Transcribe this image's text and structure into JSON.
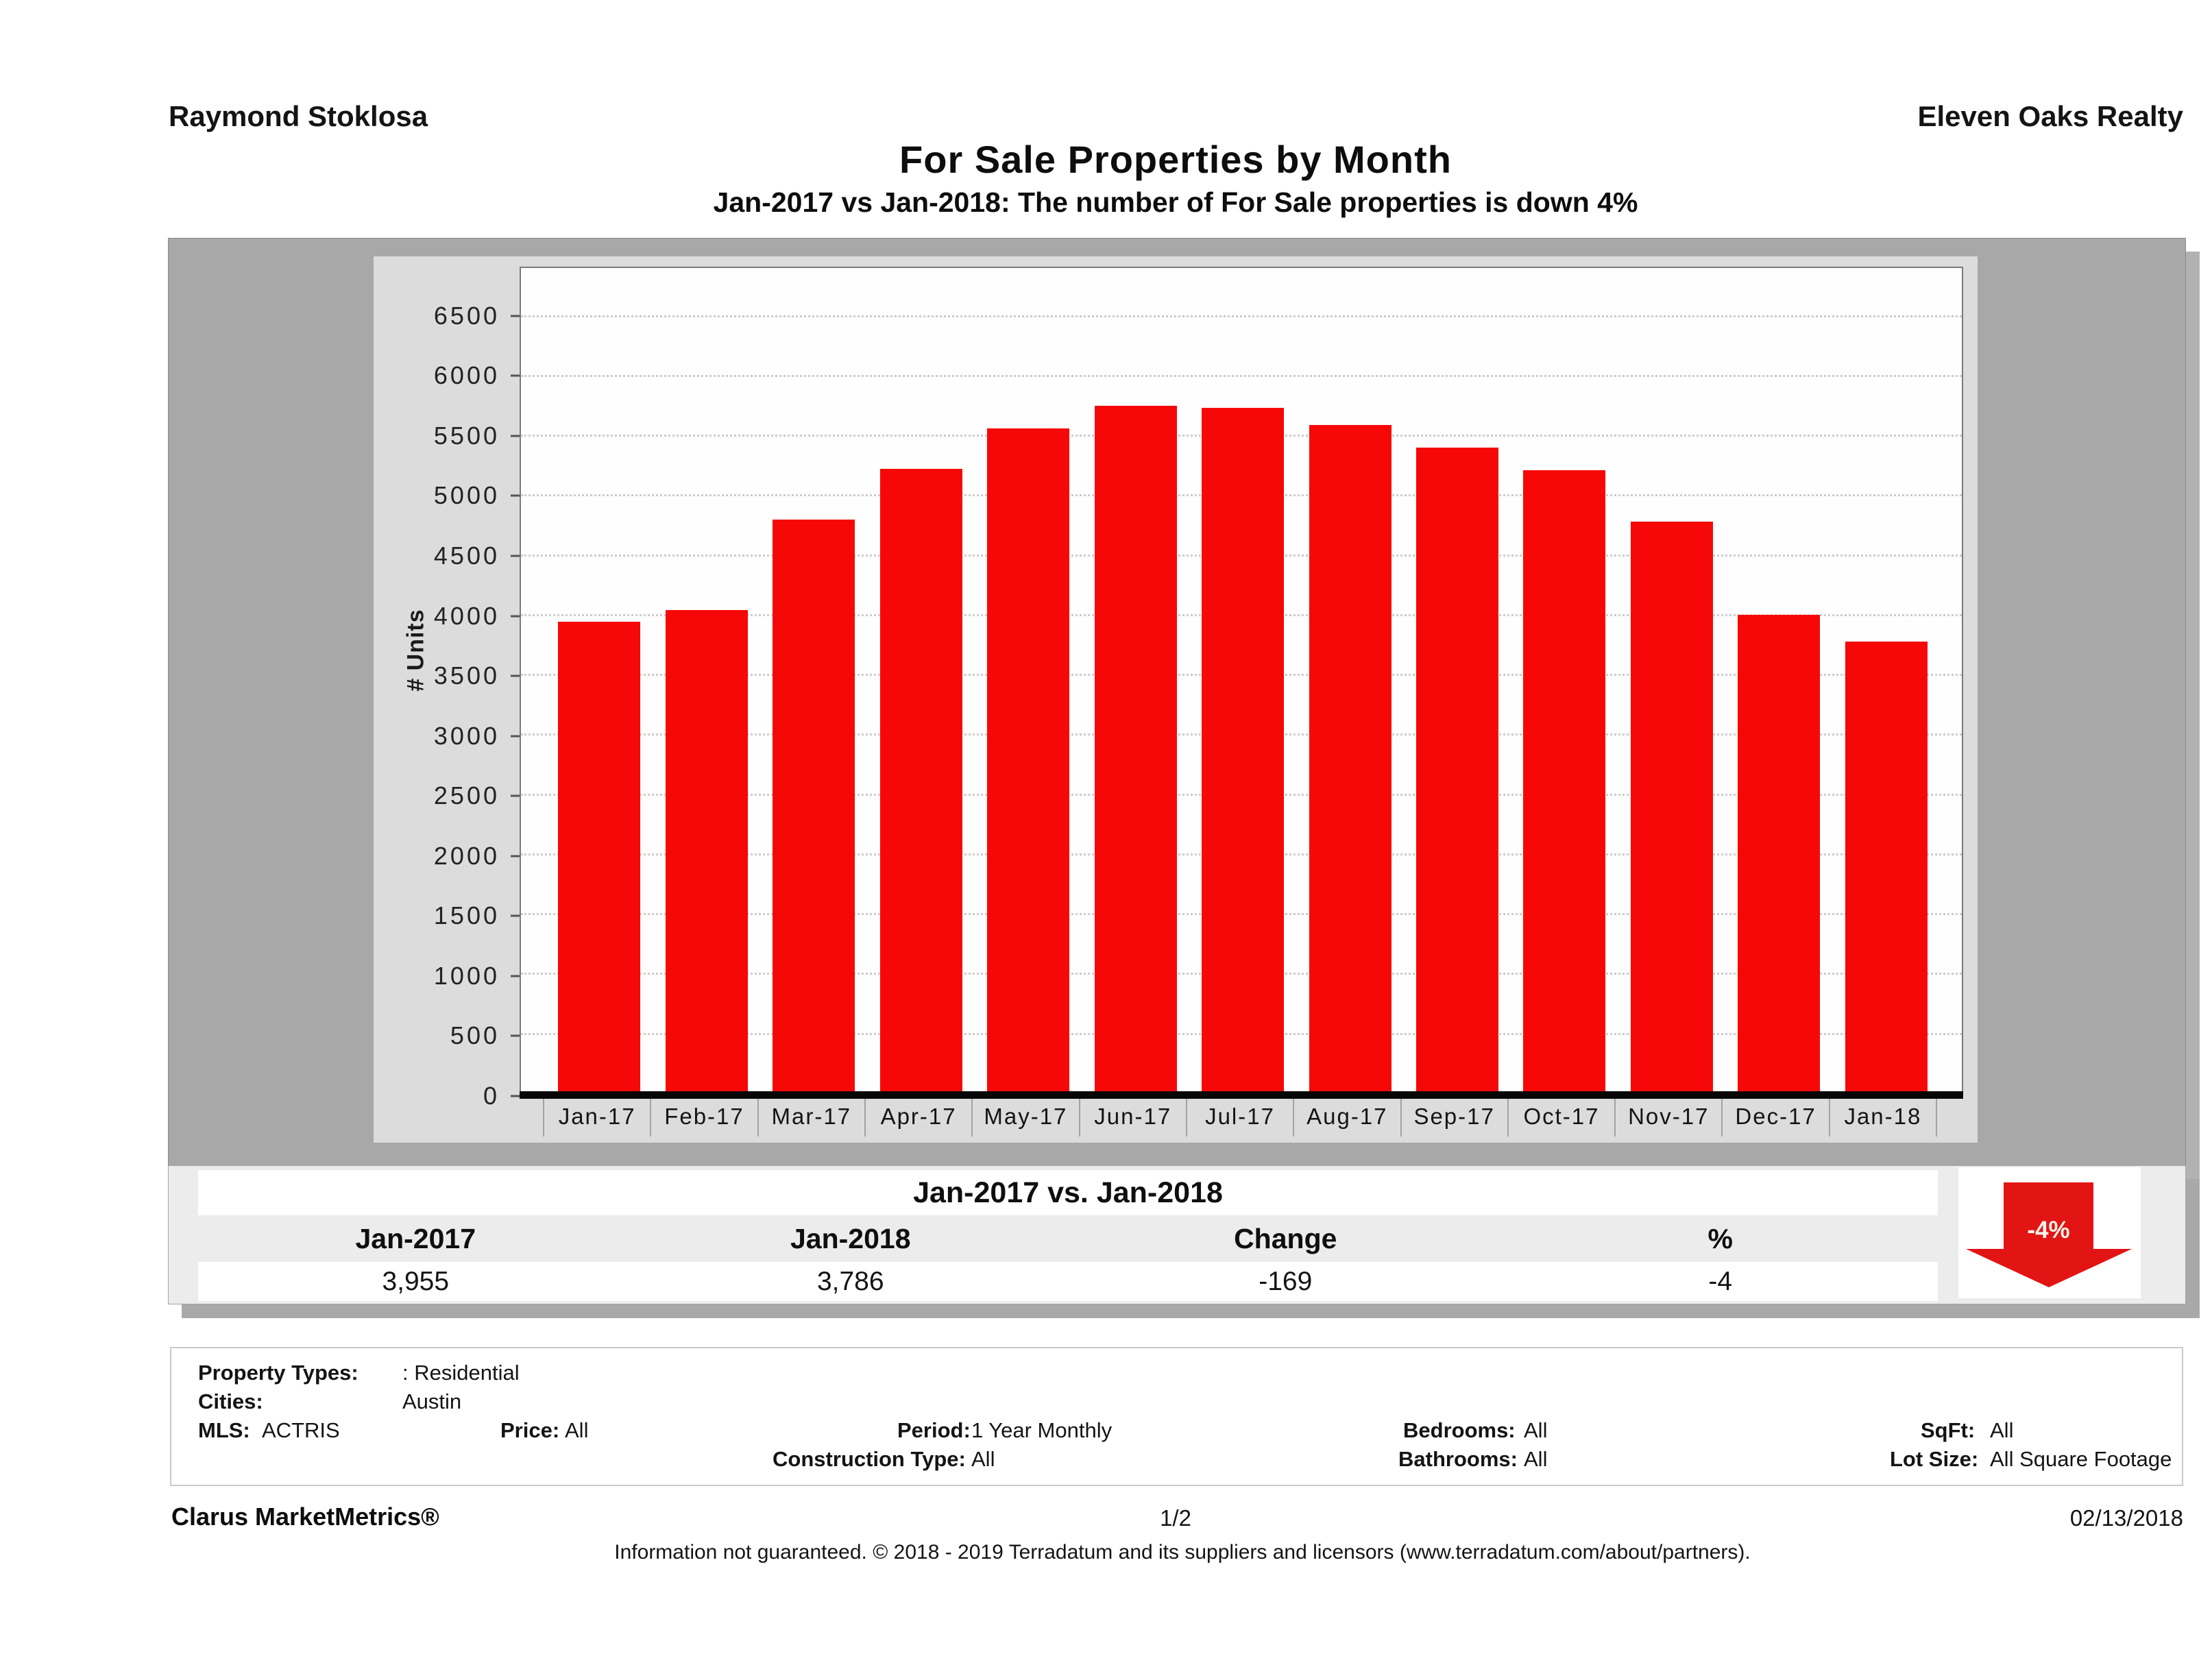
{
  "header": {
    "agent": "Raymond Stoklosa",
    "company": "Eleven Oaks Realty",
    "title": "For Sale Properties by Month",
    "subtitle": "Jan-2017 vs Jan-2018: The number of For Sale  properties is down 4%"
  },
  "chart_data": {
    "type": "bar",
    "title": "For Sale Properties by Month",
    "categories": [
      "Jan-17",
      "Feb-17",
      "Mar-17",
      "Apr-17",
      "May-17",
      "Jun-17",
      "Jul-17",
      "Aug-17",
      "Sep-17",
      "Oct-17",
      "Nov-17",
      "Dec-17",
      "Jan-18"
    ],
    "values": [
      3955,
      4050,
      4810,
      5230,
      5570,
      5760,
      5740,
      5600,
      5410,
      5220,
      4790,
      4010,
      3786
    ],
    "xlabel": "",
    "ylabel": "# Units",
    "yticks": [
      0,
      500,
      1000,
      1500,
      2000,
      2500,
      3000,
      3500,
      4000,
      4500,
      5000,
      5500,
      6000,
      6500
    ],
    "ylim": [
      0,
      6910
    ],
    "grid": "horizontal-dotted",
    "legend": "none",
    "bar_color": "#f70808"
  },
  "summary_table": {
    "title": "Jan-2017 vs. Jan-2018",
    "columns": [
      "Jan-2017",
      "Jan-2018",
      "Change",
      "%"
    ],
    "values": [
      "3,955",
      "3,786",
      "-169",
      "-4"
    ],
    "badge": {
      "label": "-4%",
      "direction": "down",
      "color": "#e31414"
    }
  },
  "filters": {
    "property_types": {
      "label": "Property Types:",
      "value": ": Residential"
    },
    "cities": {
      "label": "Cities:",
      "value": "Austin"
    },
    "mls": {
      "label": "MLS:",
      "value": "ACTRIS"
    },
    "price": {
      "label": "Price:",
      "value": "All"
    },
    "period": {
      "label": "Period:",
      "value": "1 Year Monthly"
    },
    "construction_type": {
      "label": "Construction Type:",
      "value": "All"
    },
    "bedrooms": {
      "label": "Bedrooms:",
      "value": "All"
    },
    "bathrooms": {
      "label": "Bathrooms:",
      "value": "All"
    },
    "sqft": {
      "label": "SqFt:",
      "value": "All"
    },
    "lot_size": {
      "label": "Lot Size:",
      "value": "All Square Footage"
    }
  },
  "footer": {
    "product": "Clarus MarketMetrics®",
    "page": "1/2",
    "date": "02/13/2018",
    "disclaimer": "Information not guaranteed. © 2018 - 2019 Terradatum and its suppliers and licensors (www.terradatum.com/about/partners)."
  }
}
